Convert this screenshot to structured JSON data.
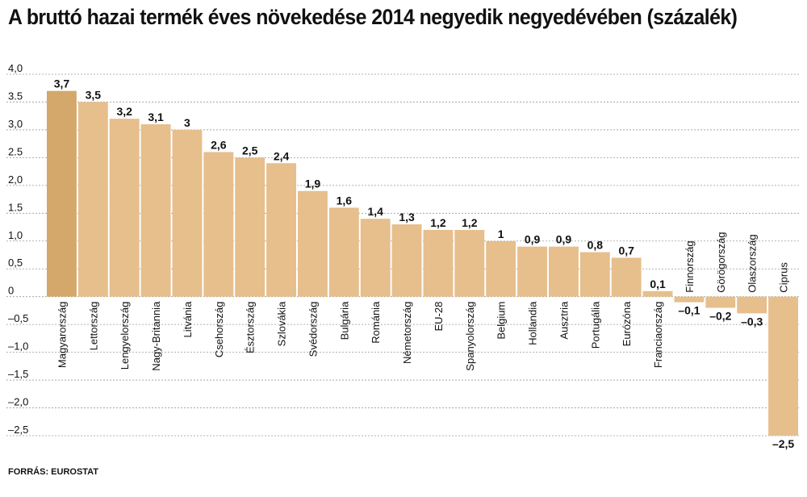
{
  "chart_data": {
    "type": "bar",
    "title": "A bruttó hazai termék éves növekedése 2014 negyedik negyedévében (százalék)",
    "source": "FORRÁS: EUROSTAT",
    "categories": [
      "Magyarország",
      "Lettország",
      "Lengyelország",
      "Nagy-Britannia",
      "Litvánia",
      "Csehország",
      "Észtország",
      "Szlovákia",
      "Svédország",
      "Bulgária",
      "Románia",
      "Németország",
      "EU-28",
      "Spanyolország",
      "Belgium",
      "Hollandia",
      "Ausztria",
      "Portugália",
      "Eurózóna",
      "Franciaország",
      "Finnország",
      "Görögország",
      "Olaszország",
      "Ciprus"
    ],
    "values": [
      3.7,
      3.5,
      3.2,
      3.1,
      3.0,
      2.6,
      2.5,
      2.4,
      1.9,
      1.6,
      1.4,
      1.3,
      1.2,
      1.2,
      1.0,
      0.9,
      0.9,
      0.8,
      0.7,
      0.1,
      -0.1,
      -0.2,
      -0.3,
      -2.5
    ],
    "value_labels": [
      "3,7",
      "3,5",
      "3,2",
      "3,1",
      "3",
      "2,6",
      "2,5",
      "2,4",
      "1,9",
      "1,6",
      "1,4",
      "1,3",
      "1,2",
      "1,2",
      "1",
      "0,9",
      "0,9",
      "0,8",
      "0,7",
      "0,1",
      "–0,1",
      "–0,2",
      "–0,3",
      "–2,5"
    ],
    "ylim": [
      -2.5,
      4.0
    ],
    "yticks": [
      4.0,
      3.5,
      3.0,
      2.5,
      2.0,
      1.5,
      1.0,
      0.5,
      0,
      -0.5,
      -1.0,
      -1.5,
      -2.0,
      -2.5
    ],
    "ytick_labels": [
      "4,0",
      "3.5",
      "3,0",
      "2.5",
      "2,0",
      "1.5",
      "1,0",
      "0,5",
      "0",
      "–0,5",
      "–1,0",
      "–1,5",
      "–2,0",
      "–2,5"
    ],
    "grid": true,
    "highlight_index": 0,
    "colors": {
      "bar": "#e6bf8c",
      "highlight": "#d4a86a",
      "grid": "#9a9a9a",
      "text": "#111111"
    }
  }
}
